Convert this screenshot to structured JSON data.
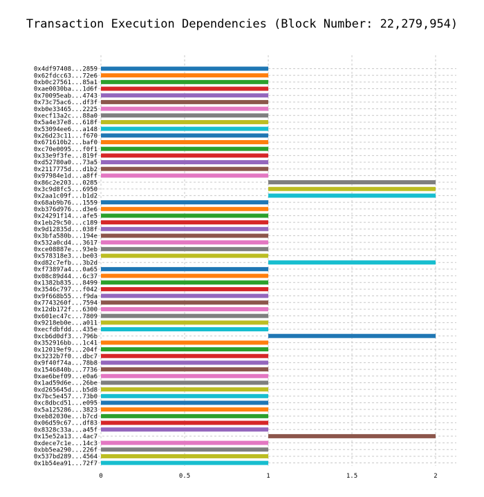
{
  "chart_data": {
    "type": "bar",
    "orientation": "horizontal",
    "title": "Transaction Execution Dependencies (Block Number: 22,279,954)",
    "xlabel": "",
    "ylabel": "",
    "xlim": [
      0,
      2.1
    ],
    "xticks": [
      "0",
      "0.5",
      "1",
      "1.5",
      "2"
    ],
    "xtick_values": [
      0,
      0.5,
      1,
      1.5,
      2
    ],
    "grid": true,
    "legend": "none",
    "color_cycle": [
      "#1f77b4",
      "#ff7f0e",
      "#2ca02c",
      "#d62728",
      "#9467bd",
      "#8c564b",
      "#e377c2",
      "#7f7f7f",
      "#bcbd22",
      "#17becf"
    ],
    "categories": [
      "0x4df97408...2859",
      "0x62fdcc63...72e6",
      "0xb0c27561...85a1",
      "0xae0030ba...1d6f",
      "0x70095eab...4743",
      "0x73c75ac6...df3f",
      "0xb0e33465...2225",
      "0xecf13a2c...88a0",
      "0x5a4e37e8...618f",
      "0x53094ee6...a148",
      "0x26d23c11...f670",
      "0x671610b2...baf0",
      "0xc70e0095...f0f1",
      "0x33e9f3fe...819f",
      "0xd52780a0...73a5",
      "0x2117775d...d1b2",
      "0x97984e1d...a8ff",
      "0x86c2e203...0285",
      "0x3c9d8fc5...6950",
      "0x2aa1c09f...b1d2",
      "0x68ab9b76...1559",
      "0xb376d976...d3e6",
      "0x24291f14...afe5",
      "0x1eb29c50...c189",
      "0x9d12835d...038f",
      "0x3bfa580b...194e",
      "0x532a0cd4...3617",
      "0xce08887e...93eb",
      "0x578318e3...be03",
      "0xd82c7efb...3b2d",
      "0xf73897a4...0a65",
      "0x08c89d44...6c37",
      "0x1382b835...8499",
      "0x3546c797...f042",
      "0x9f668b55...f9da",
      "0x7743260f...7594",
      "0x12db172f...6300",
      "0x601ec47c...7809",
      "0x9218eb0e...a011",
      "0xecfdbfdd...435e",
      "0xcb6d0df3...796b",
      "0x352916bb...1c41",
      "0x12019ef9...204f",
      "0x3232b7f0...dbc7",
      "0x9f40f74a...78b8",
      "0x1546840b...7736",
      "0xae6bef09...e0a6",
      "0x1ad59d6e...26be",
      "0xd265645d...b5d8",
      "0x7bc5e457...73b0",
      "0xc8dbcd51...e095",
      "0x5a125286...3823",
      "0xeb82030e...b7cd",
      "0x06d59c67...df83",
      "0x8328c33a...a45f",
      "0x15e52a13...4ac7",
      "0xdece7c1e...14c3",
      "0xbb5ea290...226f",
      "0x537bd289...4564",
      "0x1b54ea91...72f7"
    ],
    "bars": [
      {
        "start": 0,
        "end": 1
      },
      {
        "start": 0,
        "end": 1
      },
      {
        "start": 0,
        "end": 1
      },
      {
        "start": 0,
        "end": 1
      },
      {
        "start": 0,
        "end": 1
      },
      {
        "start": 0,
        "end": 1
      },
      {
        "start": 0,
        "end": 1
      },
      {
        "start": 0,
        "end": 1
      },
      {
        "start": 0,
        "end": 1
      },
      {
        "start": 0,
        "end": 1
      },
      {
        "start": 0,
        "end": 1
      },
      {
        "start": 0,
        "end": 1
      },
      {
        "start": 0,
        "end": 1
      },
      {
        "start": 0,
        "end": 1
      },
      {
        "start": 0,
        "end": 1
      },
      {
        "start": 0,
        "end": 1
      },
      {
        "start": 0,
        "end": 1
      },
      {
        "start": 1,
        "end": 2
      },
      {
        "start": 1,
        "end": 2
      },
      {
        "start": 1,
        "end": 2
      },
      {
        "start": 0,
        "end": 1
      },
      {
        "start": 0,
        "end": 1
      },
      {
        "start": 0,
        "end": 1
      },
      {
        "start": 0,
        "end": 1
      },
      {
        "start": 0,
        "end": 1
      },
      {
        "start": 0,
        "end": 1
      },
      {
        "start": 0,
        "end": 1
      },
      {
        "start": 0,
        "end": 1
      },
      {
        "start": 0,
        "end": 1
      },
      {
        "start": 1,
        "end": 2
      },
      {
        "start": 0,
        "end": 1
      },
      {
        "start": 0,
        "end": 1
      },
      {
        "start": 0,
        "end": 1
      },
      {
        "start": 0,
        "end": 1
      },
      {
        "start": 0,
        "end": 1
      },
      {
        "start": 0,
        "end": 1
      },
      {
        "start": 0,
        "end": 1
      },
      {
        "start": 0,
        "end": 1
      },
      {
        "start": 0,
        "end": 1
      },
      {
        "start": 0,
        "end": 1
      },
      {
        "start": 1,
        "end": 2
      },
      {
        "start": 0,
        "end": 1
      },
      {
        "start": 0,
        "end": 1
      },
      {
        "start": 0,
        "end": 1
      },
      {
        "start": 0,
        "end": 1
      },
      {
        "start": 0,
        "end": 1
      },
      {
        "start": 0,
        "end": 1
      },
      {
        "start": 0,
        "end": 1
      },
      {
        "start": 0,
        "end": 1
      },
      {
        "start": 0,
        "end": 1
      },
      {
        "start": 0,
        "end": 1
      },
      {
        "start": 0,
        "end": 1
      },
      {
        "start": 0,
        "end": 1
      },
      {
        "start": 0,
        "end": 1
      },
      {
        "start": 0,
        "end": 1
      },
      {
        "start": 1,
        "end": 2
      },
      {
        "start": 0,
        "end": 1
      },
      {
        "start": 0,
        "end": 1
      },
      {
        "start": 0,
        "end": 1
      },
      {
        "start": 0,
        "end": 1
      }
    ]
  }
}
